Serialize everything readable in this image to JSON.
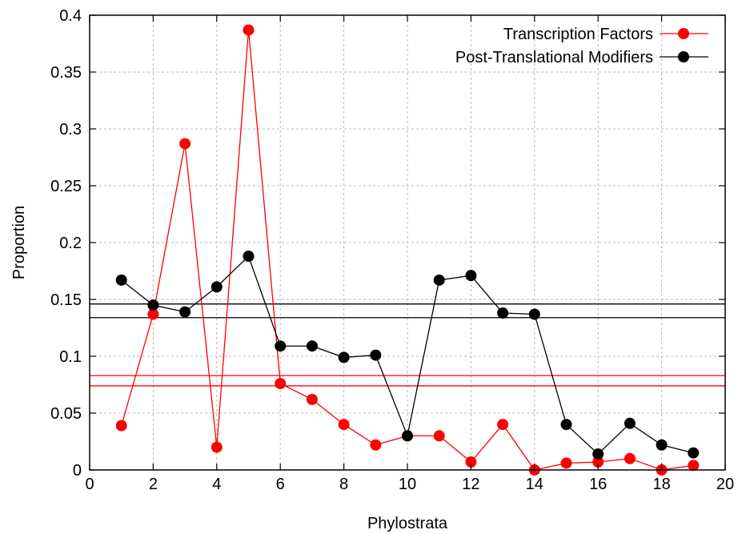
{
  "chart_data": {
    "type": "line",
    "title": "",
    "xlabel": "Phylostrata",
    "ylabel": "Proportion",
    "xlim": [
      0,
      20
    ],
    "ylim": [
      0,
      0.4
    ],
    "xticks": [
      0,
      2,
      4,
      6,
      8,
      10,
      12,
      14,
      16,
      18,
      20
    ],
    "yticks": [
      0,
      0.05,
      0.1,
      0.15,
      0.2,
      0.25,
      0.3,
      0.35,
      0.4
    ],
    "ytick_labels": [
      "0",
      "0.05",
      "0.1",
      "0.15",
      "0.2",
      "0.25",
      "0.3",
      "0.35",
      "0.4"
    ],
    "grid": true,
    "legend_position": "top-right",
    "series": [
      {
        "name": "Transcription Factors",
        "color": "#ff0000",
        "x": [
          1,
          2,
          3,
          4,
          5,
          6,
          7,
          8,
          9,
          10,
          11,
          12,
          13,
          14,
          15,
          16,
          17,
          18,
          19
        ],
        "y": [
          0.039,
          0.137,
          0.287,
          0.02,
          0.387,
          0.076,
          0.062,
          0.04,
          0.022,
          0.03,
          0.03,
          0.007,
          0.04,
          0.0,
          0.006,
          0.007,
          0.01,
          0.0,
          0.004
        ]
      },
      {
        "name": "Post-Translational Modifiers",
        "color": "#000000",
        "x": [
          1,
          2,
          3,
          4,
          5,
          6,
          7,
          8,
          9,
          10,
          11,
          12,
          13,
          14,
          15,
          16,
          17,
          18,
          19
        ],
        "y": [
          0.167,
          0.145,
          0.139,
          0.161,
          0.188,
          0.109,
          0.109,
          0.099,
          0.101,
          0.03,
          0.167,
          0.171,
          0.138,
          0.137,
          0.04,
          0.014,
          0.041,
          0.022,
          0.015
        ]
      }
    ],
    "reference_lines": [
      {
        "series": "Transcription Factors",
        "color": "#ff0000",
        "y": [
          0.074,
          0.083
        ]
      },
      {
        "series": "Post-Translational Modifiers",
        "color": "#000000",
        "y": [
          0.134,
          0.146
        ]
      }
    ]
  }
}
